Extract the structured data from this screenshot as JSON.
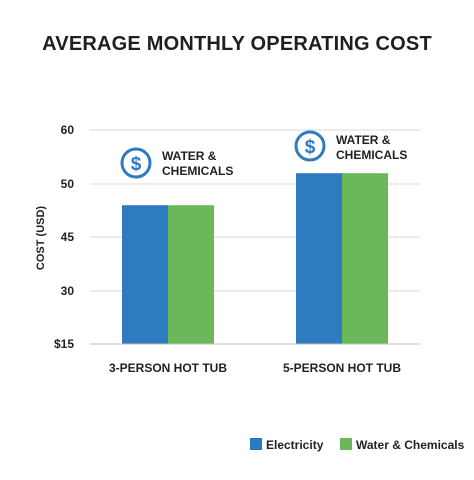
{
  "chart_data": {
    "type": "bar",
    "title": "AVERAGE MONTHLY OPERATING COST",
    "ylabel": "COST (USD)",
    "xlabel": "",
    "categories": [
      "3-PERSON HOT TUB",
      "5-PERSON HOT TUB"
    ],
    "y_tick_labels": [
      "$15",
      "30",
      "45",
      "50",
      "60"
    ],
    "grid": true,
    "legend_position": "bottom-right",
    "series": [
      {
        "name": "Electricity",
        "color": "#2f7bbf",
        "values": [
          48,
          52
        ]
      },
      {
        "name": "Water & Chemicals",
        "color": "#6ab85a",
        "values": [
          48,
          52
        ]
      }
    ],
    "annotations": [
      {
        "category_index": 0,
        "lines": [
          "WATER &",
          "CHEMICALS"
        ],
        "icon": "dollar-circle-icon",
        "color": "#2f7bbf"
      },
      {
        "category_index": 1,
        "lines": [
          "WATER &",
          "CHEMICALS"
        ],
        "icon": "dollar-circle-icon",
        "color": "#2f7bbf"
      }
    ]
  }
}
